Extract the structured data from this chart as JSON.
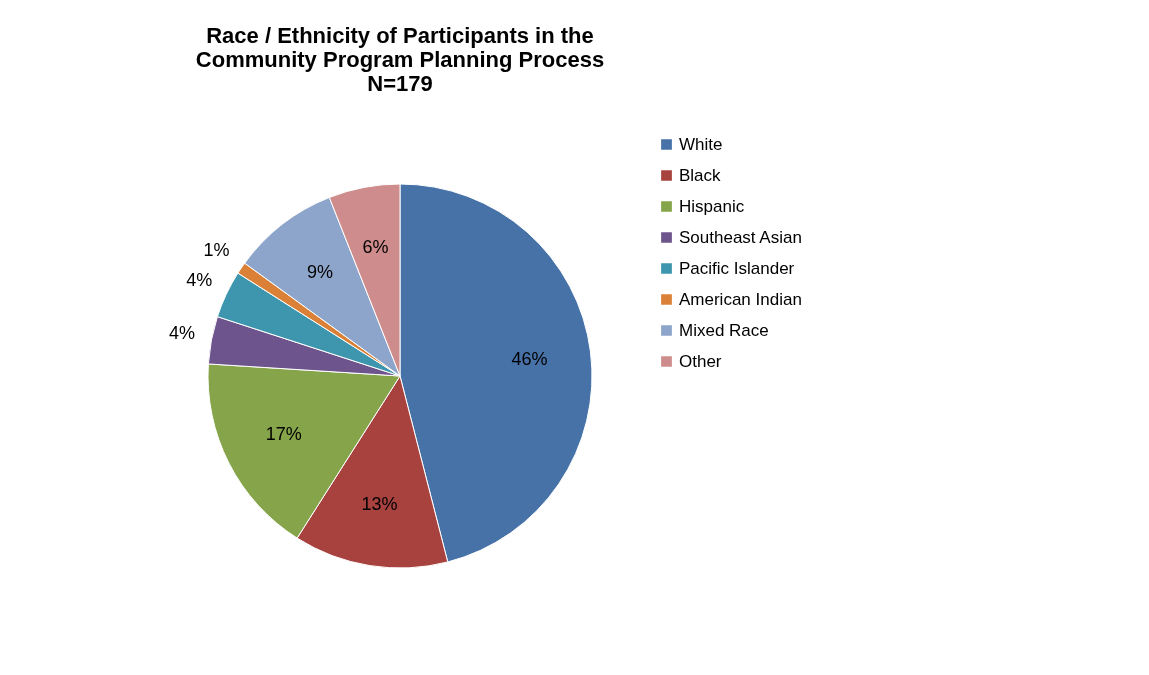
{
  "chart_data": {
    "type": "pie",
    "title": "Race / Ethnicity of Participants in the\nCommunity Program Planning Process\nN=179",
    "categories": [
      "White",
      "Black",
      "Hispanic",
      "Southeast Asian",
      "Pacific Islander",
      "American Indian",
      "Mixed Race",
      "Other"
    ],
    "values": [
      46,
      13,
      17,
      4,
      4,
      1,
      9,
      6
    ],
    "value_labels": [
      "46%",
      "13%",
      "17%",
      "4%",
      "4%",
      "1%",
      "9%",
      "6%"
    ],
    "colors": [
      "#4672a8",
      "#a8423f",
      "#86a44a",
      "#6e548d",
      "#3d96ae",
      "#da8137",
      "#8ea5cb",
      "#ce8d8c"
    ],
    "legend": "right"
  }
}
